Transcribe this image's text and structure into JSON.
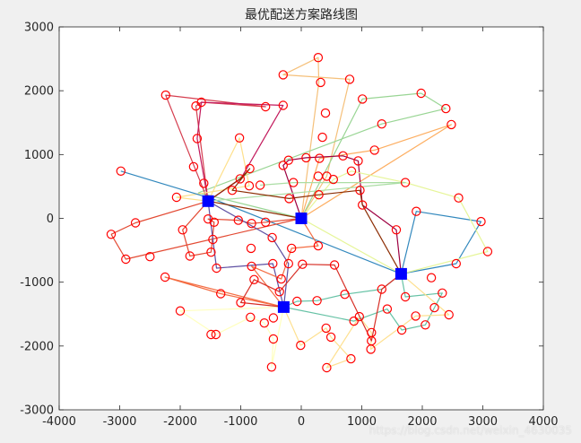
{
  "chart_data": {
    "type": "scatter",
    "title": "最优配送方案路线图",
    "xlabel": "",
    "ylabel": "",
    "xlim": [
      -4000,
      4000
    ],
    "ylim": [
      -3000,
      3000
    ],
    "x_ticks": [
      -4000,
      -3000,
      -2000,
      -1000,
      0,
      1000,
      2000,
      3000,
      4000
    ],
    "y_ticks": [
      -3000,
      -2000,
      -1000,
      0,
      1000,
      2000,
      3000
    ],
    "x_tick_labels": [
      "-4000",
      "-3000",
      "-2000",
      "-1000",
      "0",
      "1000",
      "2000",
      "3000",
      "4000"
    ],
    "y_tick_labels": [
      "-3000",
      "-2000",
      "-1000",
      "0",
      "1000",
      "2000",
      "3000"
    ],
    "grid": false,
    "legend": "none",
    "depots": [
      [
        -1540,
        270
      ],
      [
        0,
        0
      ],
      [
        1650,
        -870
      ],
      [
        -290,
        -1390
      ]
    ],
    "customers": [
      [
        280,
        2520
      ],
      [
        -300,
        2250
      ],
      [
        320,
        2130
      ],
      [
        800,
        2180
      ],
      [
        1010,
        1870
      ],
      [
        1980,
        1960
      ],
      [
        2390,
        1720
      ],
      [
        -2240,
        1930
      ],
      [
        -1650,
        1820
      ],
      [
        -1740,
        1760
      ],
      [
        -590,
        1750
      ],
      [
        -300,
        1770
      ],
      [
        400,
        1650
      ],
      [
        1330,
        1480
      ],
      [
        2480,
        1470
      ],
      [
        -1720,
        1250
      ],
      [
        -1020,
        1260
      ],
      [
        350,
        1270
      ],
      [
        -1780,
        810
      ],
      [
        -850,
        780
      ],
      [
        -300,
        830
      ],
      [
        -210,
        910
      ],
      [
        80,
        950
      ],
      [
        300,
        940
      ],
      [
        690,
        980
      ],
      [
        940,
        900
      ],
      [
        1210,
        1070
      ],
      [
        -2980,
        740
      ],
      [
        -1610,
        550
      ],
      [
        -1010,
        620
      ],
      [
        -860,
        510
      ],
      [
        -680,
        520
      ],
      [
        -130,
        560
      ],
      [
        280,
        660
      ],
      [
        420,
        660
      ],
      [
        530,
        610
      ],
      [
        830,
        740
      ],
      [
        1720,
        560
      ],
      [
        -2060,
        330
      ],
      [
        -1140,
        440
      ],
      [
        -200,
        310
      ],
      [
        290,
        370
      ],
      [
        970,
        440
      ],
      [
        2600,
        320
      ],
      [
        1010,
        210
      ],
      [
        1900,
        110
      ],
      [
        -1540,
        -10
      ],
      [
        -1440,
        -60
      ],
      [
        -1040,
        -30
      ],
      [
        -820,
        -80
      ],
      [
        -590,
        -60
      ],
      [
        -2740,
        -70
      ],
      [
        -1960,
        -180
      ],
      [
        1570,
        -180
      ],
      [
        2970,
        -50
      ],
      [
        -3140,
        -250
      ],
      [
        -1460,
        -330
      ],
      [
        -480,
        -300
      ],
      [
        280,
        -430
      ],
      [
        -830,
        -470
      ],
      [
        -1490,
        -530
      ],
      [
        -1840,
        -590
      ],
      [
        -2900,
        -640
      ],
      [
        -2500,
        -600
      ],
      [
        -160,
        -470
      ],
      [
        -470,
        -710
      ],
      [
        -1400,
        -780
      ],
      [
        -820,
        -750
      ],
      [
        -210,
        -710
      ],
      [
        20,
        -720
      ],
      [
        550,
        -730
      ],
      [
        2560,
        -710
      ],
      [
        3080,
        -520
      ],
      [
        -2250,
        -920
      ],
      [
        -780,
        -960
      ],
      [
        -330,
        -950
      ],
      [
        2150,
        -930
      ],
      [
        -1330,
        -1180
      ],
      [
        -1000,
        -1320
      ],
      [
        1330,
        -1110
      ],
      [
        -360,
        -1150
      ],
      [
        1720,
        -1230
      ],
      [
        -70,
        -1300
      ],
      [
        260,
        -1290
      ],
      [
        720,
        -1190
      ],
      [
        2330,
        -1170
      ],
      [
        -2000,
        -1450
      ],
      [
        -840,
        -1550
      ],
      [
        -460,
        -1560
      ],
      [
        2200,
        -1400
      ],
      [
        1420,
        -1420
      ],
      [
        1660,
        -1750
      ],
      [
        -1410,
        -1820
      ],
      [
        -610,
        -1640
      ],
      [
        -460,
        -1890
      ],
      [
        -10,
        -1990
      ],
      [
        870,
        -1610
      ],
      [
        960,
        -1540
      ],
      [
        410,
        -1720
      ],
      [
        1890,
        -1530
      ],
      [
        2440,
        -1510
      ],
      [
        -1490,
        -1820
      ],
      [
        1160,
        -1920
      ],
      [
        1150,
        -2050
      ],
      [
        2050,
        -1670
      ],
      [
        1160,
        -1790
      ],
      [
        -490,
        -2330
      ],
      [
        420,
        -2340
      ],
      [
        820,
        -2200
      ],
      [
        490,
        -1860
      ]
    ],
    "routes": [
      {
        "color": "#f5c07a",
        "points": [
          [
            0,
            0
          ],
          [
            290,
            2130
          ],
          [
            280,
            2520
          ],
          [
            -300,
            2250
          ],
          [
            800,
            2180
          ],
          [
            420,
            660
          ],
          [
            0,
            0
          ]
        ]
      },
      {
        "color": "#99d594",
        "points": [
          [
            0,
            0
          ],
          [
            1010,
            1870
          ],
          [
            1980,
            1960
          ],
          [
            2390,
            1720
          ],
          [
            1330,
            1480
          ],
          [
            -1700,
            400
          ],
          [
            0,
            0
          ]
        ]
      },
      {
        "color": "#fdae61",
        "points": [
          [
            0,
            0
          ],
          [
            2480,
            1470
          ],
          [
            1210,
            1070
          ],
          [
            300,
            940
          ],
          [
            0,
            0
          ]
        ]
      },
      {
        "color": "#d53e4f",
        "points": [
          [
            -1540,
            270
          ],
          [
            -2240,
            1930
          ],
          [
            -590,
            1750
          ],
          [
            -1650,
            1820
          ],
          [
            -1740,
            1760
          ],
          [
            -1540,
            270
          ]
        ]
      },
      {
        "color": "#c2185b",
        "points": [
          [
            -1540,
            270
          ],
          [
            -1720,
            1250
          ],
          [
            -1650,
            1820
          ],
          [
            -300,
            1770
          ],
          [
            -1000,
            620
          ],
          [
            -1540,
            270
          ]
        ]
      },
      {
        "color": "#fee08b",
        "points": [
          [
            -1540,
            270
          ],
          [
            -1020,
            1260
          ],
          [
            -860,
            510
          ],
          [
            -2060,
            330
          ],
          [
            -1540,
            270
          ]
        ]
      },
      {
        "color": "#3288bd",
        "points": [
          [
            -2980,
            740
          ],
          [
            -1450,
            300
          ],
          [
            1650,
            -870
          ],
          [
            2560,
            -710
          ],
          [
            2970,
            -50
          ],
          [
            1900,
            110
          ],
          [
            1650,
            -870
          ]
        ]
      },
      {
        "color": "#9e0142",
        "points": [
          [
            0,
            0
          ],
          [
            -300,
            830
          ],
          [
            -210,
            910
          ],
          [
            80,
            950
          ],
          [
            690,
            980
          ],
          [
            940,
            900
          ],
          [
            1010,
            210
          ],
          [
            1570,
            -180
          ],
          [
            1650,
            -870
          ]
        ]
      },
      {
        "color": "#e6f598",
        "points": [
          [
            0,
            0
          ],
          [
            530,
            610
          ],
          [
            830,
            740
          ],
          [
            1720,
            560
          ],
          [
            2600,
            320
          ],
          [
            3080,
            -520
          ],
          [
            1650,
            -870
          ],
          [
            0,
            0
          ]
        ]
      },
      {
        "color": "#abdda4",
        "points": [
          [
            -680,
            520
          ],
          [
            -130,
            560
          ],
          [
            1000,
            560
          ],
          [
            1720,
            560
          ],
          [
            -1540,
            270
          ]
        ]
      },
      {
        "color": "#e34a33",
        "points": [
          [
            -3140,
            -250
          ],
          [
            -2740,
            -70
          ],
          [
            -1540,
            270
          ],
          [
            -1960,
            -180
          ],
          [
            -1840,
            -590
          ],
          [
            -1490,
            -530
          ],
          [
            -1440,
            -60
          ],
          [
            -1540,
            -10
          ],
          [
            -1040,
            -30
          ],
          [
            -820,
            -80
          ],
          [
            -590,
            -60
          ],
          [
            0,
            0
          ],
          [
            -2900,
            -640
          ],
          [
            -3140,
            -250
          ]
        ]
      },
      {
        "color": "#5e4fa2",
        "points": [
          [
            -1540,
            270
          ],
          [
            -480,
            -300
          ],
          [
            -210,
            -710
          ],
          [
            -290,
            -1390
          ],
          [
            -470,
            -710
          ],
          [
            -1400,
            -780
          ],
          [
            -1460,
            -330
          ],
          [
            -1540,
            270
          ]
        ]
      },
      {
        "color": "#f46d43",
        "points": [
          [
            0,
            0
          ],
          [
            280,
            -430
          ],
          [
            -160,
            -470
          ],
          [
            -330,
            -950
          ],
          [
            -820,
            -750
          ],
          [
            -290,
            -1390
          ],
          [
            -1330,
            -1180
          ],
          [
            -2250,
            -920
          ],
          [
            -290,
            -1390
          ]
        ]
      },
      {
        "color": "#66c2a5",
        "points": [
          [
            -290,
            -1390
          ],
          [
            -70,
            -1300
          ],
          [
            260,
            -1290
          ],
          [
            720,
            -1190
          ],
          [
            1330,
            -1110
          ],
          [
            1650,
            -870
          ],
          [
            1720,
            -1230
          ],
          [
            2330,
            -1170
          ],
          [
            2200,
            -1400
          ],
          [
            2050,
            -1670
          ],
          [
            1660,
            -1750
          ],
          [
            1420,
            -1420
          ],
          [
            870,
            -1610
          ],
          [
            -290,
            -1390
          ]
        ]
      },
      {
        "color": "#ffffbf",
        "points": [
          [
            -290,
            -1390
          ],
          [
            -2000,
            -1450
          ],
          [
            -1410,
            -1820
          ],
          [
            -840,
            -1550
          ],
          [
            -610,
            -1640
          ],
          [
            -460,
            -1890
          ],
          [
            -490,
            -2330
          ],
          [
            -290,
            -1390
          ]
        ]
      },
      {
        "color": "#fee090",
        "points": [
          [
            -290,
            -1390
          ],
          [
            -10,
            -1990
          ],
          [
            410,
            -1720
          ],
          [
            490,
            -1860
          ],
          [
            820,
            -2200
          ],
          [
            420,
            -2340
          ],
          [
            960,
            -1540
          ],
          [
            1160,
            -1790
          ],
          [
            1150,
            -2050
          ],
          [
            1890,
            -1530
          ],
          [
            2440,
            -1510
          ],
          [
            1650,
            -870
          ]
        ]
      },
      {
        "color": "#d73027",
        "points": [
          [
            -290,
            -1390
          ],
          [
            -1000,
            -1320
          ],
          [
            -780,
            -960
          ],
          [
            -360,
            -1150
          ],
          [
            20,
            -720
          ],
          [
            550,
            -730
          ],
          [
            1160,
            -1920
          ],
          [
            1330,
            -1110
          ],
          [
            1650,
            -870
          ]
        ]
      },
      {
        "color": "#8c2d04",
        "points": [
          [
            0,
            0
          ],
          [
            -1540,
            270
          ],
          [
            -1010,
            620
          ],
          [
            -850,
            780
          ],
          [
            -1140,
            440
          ],
          [
            -200,
            310
          ],
          [
            290,
            370
          ],
          [
            970,
            440
          ],
          [
            1010,
            210
          ],
          [
            1650,
            -870
          ]
        ]
      }
    ]
  },
  "watermark_text": "https://blog.csdn.net/weixin_4630035"
}
